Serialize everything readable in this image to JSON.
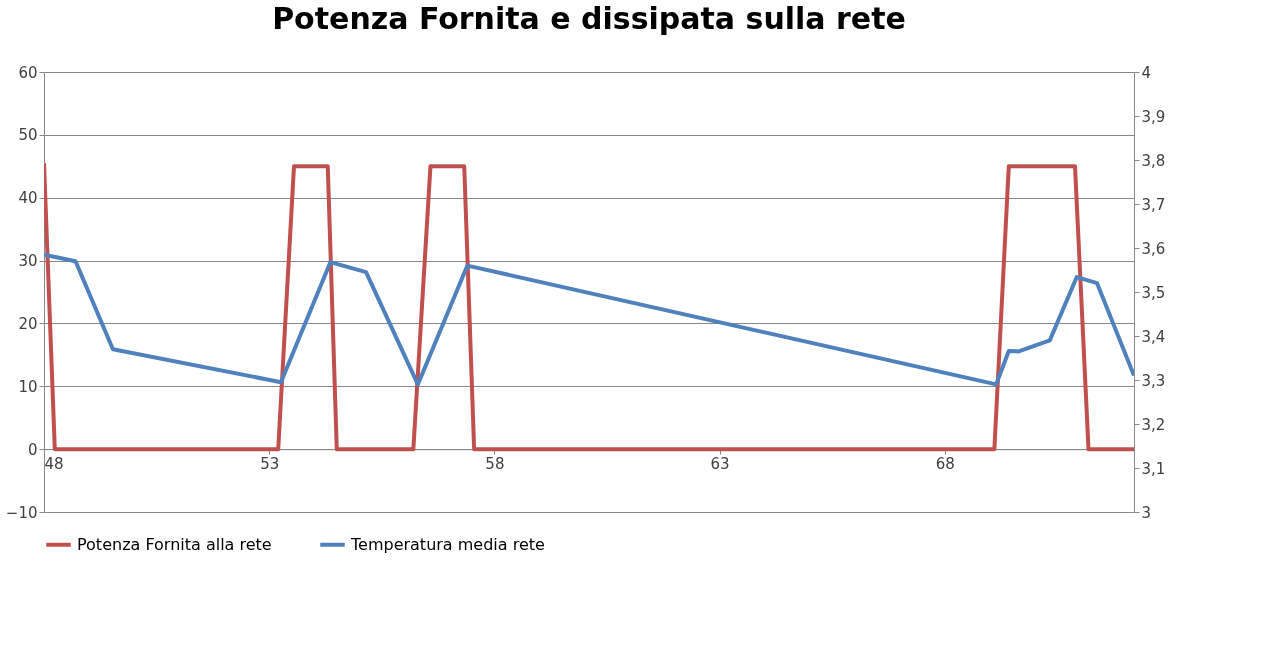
{
  "chart_data": {
    "type": "line",
    "title": "Potenza Fornita e dissipata sulla rete",
    "xlim": [
      48,
      72.2
    ],
    "xticks": [
      48,
      53,
      58,
      63,
      68
    ],
    "ylim": [
      -10,
      60
    ],
    "yticks": [
      -10,
      0,
      10,
      20,
      30,
      40,
      50,
      60
    ],
    "y2lim": [
      3,
      4
    ],
    "y2ticks": [
      {
        "value": 3,
        "label": "3"
      },
      {
        "value": 3.1,
        "label": "3,1"
      },
      {
        "value": 3.2,
        "label": "3,2"
      },
      {
        "value": 3.3,
        "label": "3,3"
      },
      {
        "value": 3.4,
        "label": "3,4"
      },
      {
        "value": 3.5,
        "label": "3,5"
      },
      {
        "value": 3.6,
        "label": "3,6"
      },
      {
        "value": 3.7,
        "label": "3,7"
      },
      {
        "value": 3.8,
        "label": "3,8"
      },
      {
        "value": 3.9,
        "label": "3,9"
      },
      {
        "value": 4,
        "label": "4"
      }
    ],
    "grid": "y",
    "legend": "bottom",
    "series": [
      {
        "name": "Potenza Fornita alla rete",
        "color": "#c0504d",
        "x": [
          48,
          48.24,
          48.4,
          53.2,
          53.55,
          54.3,
          54.5,
          54.7,
          56.2,
          56.58,
          57.33,
          57.55,
          57.75,
          69.1,
          69.42,
          70.89,
          71.19,
          71.4,
          72.2
        ],
        "values": [
          45.5,
          0,
          0,
          0,
          45,
          45,
          0,
          0,
          0,
          45,
          45,
          0,
          0,
          0,
          45,
          45,
          0,
          0,
          0
        ]
      },
      {
        "name": "Temperatura media rete",
        "color": "#4f81bd",
        "axis": "y2",
        "x": [
          48,
          48.7,
          49.53,
          53.26,
          54.36,
          55.15,
          56.3,
          57.4,
          69.14,
          69.42,
          69.64,
          70.33,
          70.93,
          71.38,
          72.2
        ],
        "values": [
          3.585,
          3.57,
          3.37,
          3.295,
          3.568,
          3.545,
          3.29,
          3.56,
          3.29,
          3.366,
          3.365,
          3.39,
          3.534,
          3.52,
          3.31
        ]
      }
    ]
  }
}
